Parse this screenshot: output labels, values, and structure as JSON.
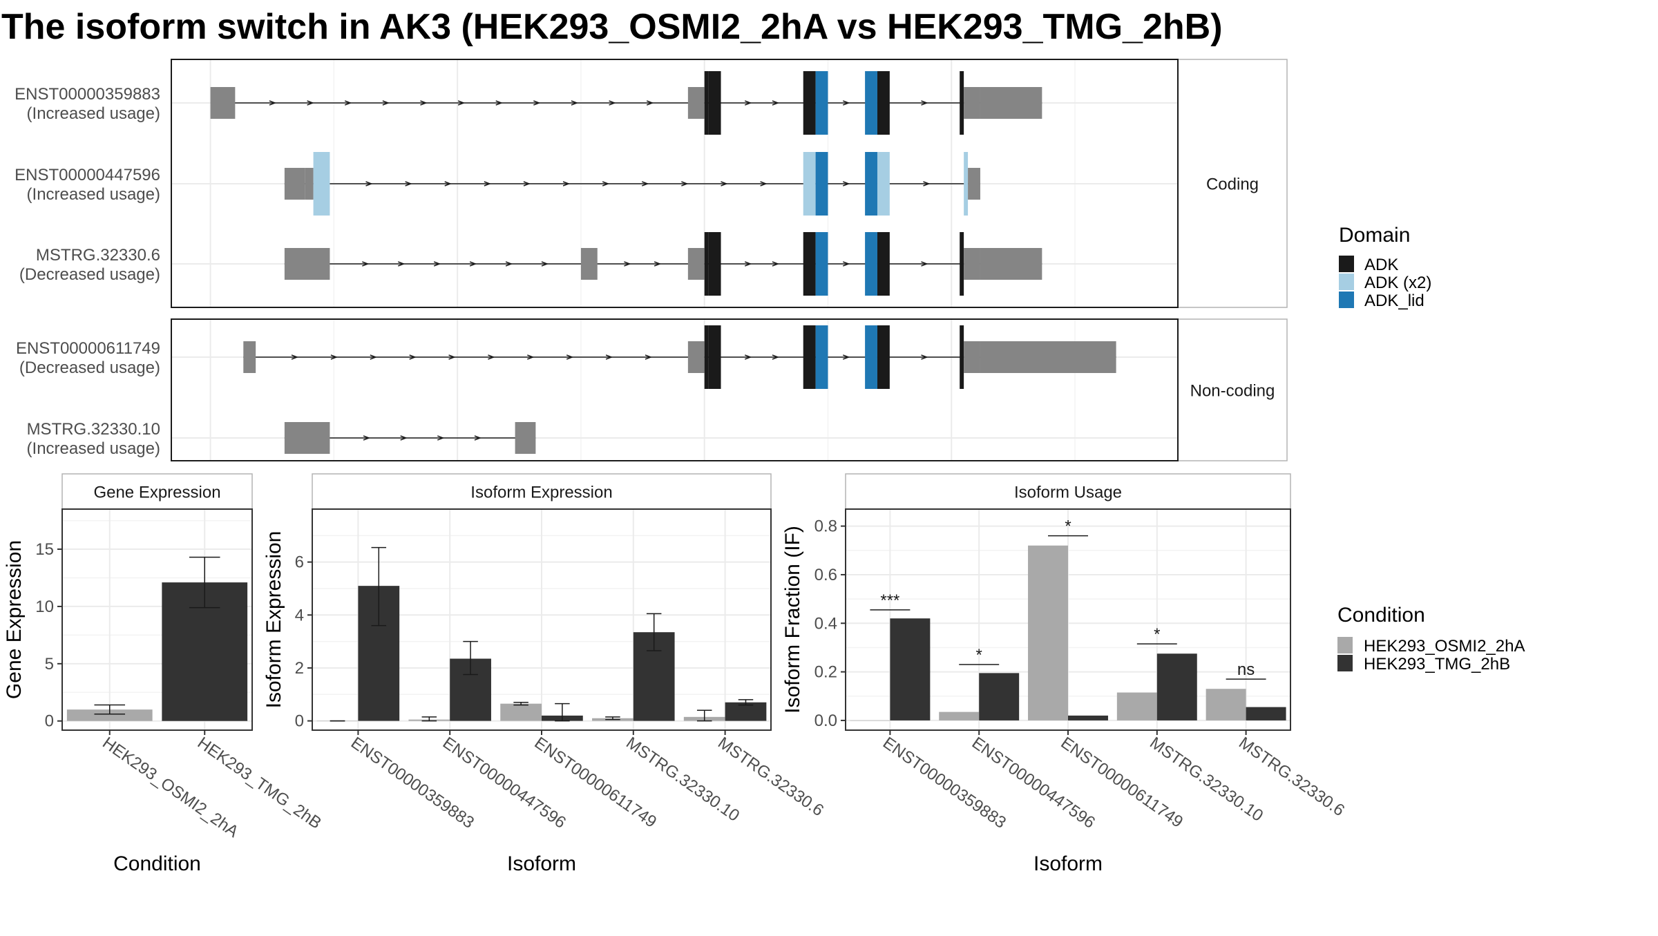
{
  "title": "The isoform switch in AK3 (HEK293_OSMI2_2hA vs HEK293_TMG_2hB)",
  "colors": {
    "grey_exon": "#858585",
    "ADK": "#1a1a1a",
    "ADK_x2": "#a6cee3",
    "ADK_lid": "#1f78b4",
    "cond_a": "#a9a9a9",
    "cond_b": "#333333"
  },
  "chart_data": [
    {
      "type": "gene-structure",
      "facets": [
        {
          "label": "Coding",
          "transcripts": [
            {
              "id": "ENST00000359883",
              "usage": "(Increased usage)",
              "segments": [
                {
                  "s": 0,
                  "e": 0.6,
                  "f": "utr"
                },
                {
                  "s": 11.6,
                  "e": 12.0,
                  "f": "utr"
                },
                {
                  "s": 12.0,
                  "e": 12.1,
                  "f": "ADK_thin"
                },
                {
                  "s": 12.1,
                  "e": 12.4,
                  "f": "ADK"
                },
                {
                  "s": 14.4,
                  "e": 14.7,
                  "f": "ADK"
                },
                {
                  "s": 14.7,
                  "e": 15.0,
                  "f": "ADK_lid"
                },
                {
                  "s": 15.9,
                  "e": 16.2,
                  "f": "ADK_lid"
                },
                {
                  "s": 16.2,
                  "e": 16.5,
                  "f": "ADK"
                },
                {
                  "s": 18.2,
                  "e": 18.3,
                  "f": "ADK_thin"
                },
                {
                  "s": 18.3,
                  "e": 18.7,
                  "f": "utr"
                },
                {
                  "s": 18.7,
                  "e": 20.2,
                  "f": "utr"
                }
              ]
            },
            {
              "id": "ENST00000447596",
              "usage": "(Increased usage)",
              "segments": [
                {
                  "s": 1.8,
                  "e": 2.3,
                  "f": "utr"
                },
                {
                  "s": 2.3,
                  "e": 2.5,
                  "f": "utr"
                },
                {
                  "s": 2.5,
                  "e": 2.9,
                  "f": "ADK_x2"
                },
                {
                  "s": 14.4,
                  "e": 14.7,
                  "f": "ADK_x2"
                },
                {
                  "s": 14.7,
                  "e": 15.0,
                  "f": "ADK_lid"
                },
                {
                  "s": 15.9,
                  "e": 16.2,
                  "f": "ADK_lid"
                },
                {
                  "s": 16.2,
                  "e": 16.5,
                  "f": "ADK_x2"
                },
                {
                  "s": 18.3,
                  "e": 18.4,
                  "f": "ADK_x2"
                },
                {
                  "s": 18.4,
                  "e": 18.7,
                  "f": "utr"
                }
              ]
            },
            {
              "id": "MSTRG.32330.6",
              "usage": "(Decreased usage)",
              "segments": [
                {
                  "s": 1.8,
                  "e": 2.9,
                  "f": "utr"
                },
                {
                  "s": 9.0,
                  "e": 9.4,
                  "f": "utr"
                },
                {
                  "s": 11.6,
                  "e": 12.0,
                  "f": "utr"
                },
                {
                  "s": 12.0,
                  "e": 12.1,
                  "f": "ADK_thin"
                },
                {
                  "s": 12.1,
                  "e": 12.4,
                  "f": "ADK"
                },
                {
                  "s": 14.4,
                  "e": 14.7,
                  "f": "ADK"
                },
                {
                  "s": 14.7,
                  "e": 15.0,
                  "f": "ADK_lid"
                },
                {
                  "s": 15.9,
                  "e": 16.2,
                  "f": "ADK_lid"
                },
                {
                  "s": 16.2,
                  "e": 16.5,
                  "f": "ADK"
                },
                {
                  "s": 18.2,
                  "e": 18.3,
                  "f": "ADK_thin"
                },
                {
                  "s": 18.3,
                  "e": 18.7,
                  "f": "utr"
                },
                {
                  "s": 18.7,
                  "e": 20.2,
                  "f": "utr"
                }
              ]
            }
          ]
        },
        {
          "label": "Non-coding",
          "transcripts": [
            {
              "id": "ENST00000611749",
              "usage": "(Decreased usage)",
              "segments": [
                {
                  "s": 0.8,
                  "e": 1.1,
                  "f": "utr"
                },
                {
                  "s": 11.6,
                  "e": 12.0,
                  "f": "utr"
                },
                {
                  "s": 12.0,
                  "e": 12.1,
                  "f": "ADK_thin"
                },
                {
                  "s": 12.1,
                  "e": 12.4,
                  "f": "ADK"
                },
                {
                  "s": 14.4,
                  "e": 14.7,
                  "f": "ADK"
                },
                {
                  "s": 14.7,
                  "e": 15.0,
                  "f": "ADK_lid"
                },
                {
                  "s": 15.9,
                  "e": 16.2,
                  "f": "ADK_lid"
                },
                {
                  "s": 16.2,
                  "e": 16.5,
                  "f": "ADK"
                },
                {
                  "s": 18.2,
                  "e": 18.3,
                  "f": "ADK_thin"
                },
                {
                  "s": 18.3,
                  "e": 18.7,
                  "f": "utr"
                },
                {
                  "s": 18.7,
                  "e": 22.0,
                  "f": "utr"
                }
              ]
            },
            {
              "id": "MSTRG.32330.10",
              "usage": "(Increased usage)",
              "segments": [
                {
                  "s": 1.8,
                  "e": 2.9,
                  "f": "utr"
                },
                {
                  "s": 7.4,
                  "e": 7.9,
                  "f": "utr"
                }
              ]
            }
          ]
        }
      ]
    },
    {
      "type": "bar",
      "facet": "Gene Expression",
      "categories": [
        "HEK293_OSMI2_2hA",
        "HEK293_TMG_2hB"
      ],
      "values": [
        1.0,
        12.1
      ],
      "err_low": [
        0.6,
        9.9
      ],
      "err_high": [
        1.4,
        14.3
      ],
      "xlabel": "Condition",
      "ylabel": "Gene Expression",
      "ylim": [
        -0.8,
        18.5
      ],
      "yticks": [
        0,
        5,
        10,
        15
      ]
    },
    {
      "type": "bar",
      "facet": "Isoform Expression",
      "categories": [
        "ENST00000359883",
        "ENST00000447596",
        "ENST00000611749",
        "MSTRG.32330.10",
        "MSTRG.32330.6"
      ],
      "series": [
        {
          "name": "HEK293_OSMI2_2hA",
          "values": [
            0.0,
            0.05,
            0.65,
            0.1,
            0.15
          ],
          "err_low": [
            0.0,
            0.0,
            0.6,
            0.05,
            0.0
          ],
          "err_high": [
            0.0,
            0.15,
            0.7,
            0.15,
            0.4
          ]
        },
        {
          "name": "HEK293_TMG_2hB",
          "values": [
            5.1,
            2.35,
            0.2,
            3.35,
            0.7
          ],
          "err_low": [
            3.6,
            1.75,
            0.0,
            2.65,
            0.6
          ],
          "err_high": [
            6.55,
            3.0,
            0.65,
            4.05,
            0.8
          ]
        }
      ],
      "xlabel": "Isoform",
      "ylabel": "Isoform Expression",
      "ylim": [
        -0.35,
        8.0
      ],
      "yticks": [
        0,
        2,
        4,
        6
      ]
    },
    {
      "type": "bar",
      "facet": "Isoform Usage",
      "categories": [
        "ENST00000359883",
        "ENST00000447596",
        "ENST00000611749",
        "MSTRG.32330.10",
        "MSTRG.32330.6"
      ],
      "series": [
        {
          "name": "HEK293_OSMI2_2hA",
          "values": [
            0.0,
            0.035,
            0.72,
            0.115,
            0.13
          ]
        },
        {
          "name": "HEK293_TMG_2hB",
          "values": [
            0.42,
            0.195,
            0.02,
            0.275,
            0.055
          ]
        }
      ],
      "significance": [
        "***",
        "*",
        "*",
        "*",
        "ns"
      ],
      "sig_y": [
        0.455,
        0.23,
        0.76,
        0.315,
        0.17
      ],
      "xlabel": "Isoform",
      "ylabel": "Isoform Fraction (IF)",
      "ylim": [
        -0.04,
        0.87
      ],
      "yticks": [
        0.0,
        0.2,
        0.4,
        0.6,
        0.8
      ],
      "ytick_labels": [
        "0.0",
        "0.2",
        "0.4",
        "0.6",
        "0.8"
      ]
    }
  ],
  "legend_domain": {
    "title": "Domain",
    "items": [
      {
        "label": "ADK",
        "color": "#1a1a1a"
      },
      {
        "label": "ADK (x2)",
        "color": "#a6cee3"
      },
      {
        "label": "ADK_lid",
        "color": "#1f78b4"
      }
    ]
  },
  "legend_condition": {
    "title": "Condition",
    "items": [
      {
        "label": "HEK293_OSMI2_2hA",
        "color": "#a9a9a9"
      },
      {
        "label": "HEK293_TMG_2hB",
        "color": "#333333"
      }
    ]
  }
}
